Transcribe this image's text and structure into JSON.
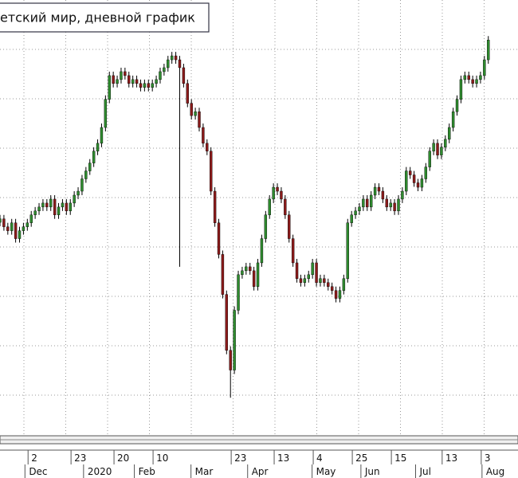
{
  "chart_data": {
    "type": "candlestick",
    "title": "етский мир, дневной график",
    "up_color": "#2e8b2e",
    "down_color": "#8b1a1a",
    "wick_color": "#000000",
    "xlim": [
      0,
      132.6
    ],
    "ylim": [
      1.8,
      90
    ],
    "open": [
      45.0,
      45.7,
      44.1,
      43.3,
      44.9,
      41.7,
      43.3,
      44.1,
      44.9,
      46.5,
      47.3,
      48.1,
      48.9,
      48.1,
      49.7,
      46.5,
      48.1,
      48.9,
      47.3,
      48.9,
      50.5,
      51.3,
      53.8,
      55.4,
      57.0,
      59.4,
      61.0,
      64.2,
      69.9,
      74.7,
      73.1,
      73.9,
      75.5,
      74.7,
      73.1,
      73.9,
      73.1,
      72.3,
      73.1,
      72.3,
      73.1,
      73.9,
      75.5,
      76.3,
      77.9,
      78.7,
      77.9,
      76.3,
      73.1,
      69.1,
      66.6,
      67.4,
      64.2,
      61.0,
      59.4,
      51.3,
      44.9,
      38.5,
      30.4,
      19.1,
      15.1,
      27.2,
      34.4,
      35.2,
      36.0,
      35.2,
      32.0,
      36.8,
      41.7,
      46.5,
      49.7,
      52.1,
      51.3,
      49.7,
      46.5,
      41.7,
      36.8,
      33.6,
      32.8,
      33.6,
      34.4,
      36.8,
      32.8,
      33.6,
      32.8,
      32.0,
      31.2,
      29.6,
      31.2,
      33.6,
      44.9,
      46.5,
      47.3,
      48.1,
      49.7,
      48.1,
      50.5,
      52.1,
      51.3,
      49.7,
      48.1,
      48.9,
      47.3,
      49.7,
      51.3,
      55.4,
      54.6,
      53.0,
      52.1,
      53.8,
      56.2,
      59.4,
      61.0,
      58.6,
      60.2,
      61.8,
      64.2,
      67.4,
      69.9,
      73.9,
      74.7,
      73.9,
      73.1,
      73.9,
      74.7,
      77.9
    ],
    "high": [
      46.5,
      46.5,
      44.9,
      45.7,
      45.7,
      44.1,
      44.9,
      45.7,
      47.3,
      48.1,
      48.9,
      49.7,
      49.7,
      50.5,
      50.5,
      48.9,
      49.7,
      49.7,
      49.7,
      51.3,
      52.1,
      54.6,
      56.2,
      57.8,
      60.2,
      61.8,
      65.0,
      70.7,
      75.5,
      75.5,
      74.7,
      76.3,
      76.3,
      75.5,
      74.7,
      74.7,
      73.9,
      73.9,
      73.9,
      73.9,
      74.7,
      76.3,
      77.1,
      78.7,
      79.5,
      79.5,
      78.7,
      77.1,
      73.9,
      69.9,
      68.2,
      68.2,
      65.0,
      61.8,
      60.2,
      52.1,
      45.7,
      39.3,
      31.2,
      19.9,
      28.0,
      35.2,
      36.0,
      36.8,
      36.8,
      36.0,
      37.6,
      42.5,
      47.3,
      50.5,
      52.9,
      52.9,
      52.1,
      50.5,
      47.3,
      42.5,
      37.6,
      34.4,
      34.4,
      35.2,
      37.6,
      37.6,
      34.4,
      34.4,
      33.6,
      32.8,
      32.0,
      32.0,
      34.4,
      45.7,
      47.3,
      48.1,
      48.9,
      50.5,
      50.5,
      51.3,
      52.9,
      52.9,
      52.1,
      50.5,
      49.7,
      49.7,
      50.5,
      52.1,
      56.2,
      56.2,
      55.4,
      53.8,
      54.6,
      57.0,
      60.2,
      61.8,
      61.8,
      61.0,
      62.6,
      65.0,
      68.2,
      70.7,
      74.7,
      75.5,
      75.5,
      74.7,
      74.7,
      75.5,
      78.7,
      82.7
    ],
    "low": [
      44.2,
      43.3,
      42.5,
      42.5,
      40.9,
      40.9,
      42.5,
      43.3,
      44.1,
      45.7,
      46.5,
      47.3,
      47.3,
      47.3,
      45.7,
      45.7,
      47.3,
      46.5,
      46.5,
      48.1,
      49.7,
      50.5,
      53.0,
      54.6,
      56.2,
      58.6,
      60.2,
      63.4,
      69.1,
      72.3,
      72.3,
      73.1,
      73.9,
      72.3,
      72.3,
      72.3,
      71.5,
      71.5,
      71.5,
      71.5,
      72.3,
      73.1,
      74.7,
      75.5,
      77.1,
      77.1,
      36.0,
      72.3,
      68.3,
      65.8,
      65.8,
      63.4,
      60.2,
      58.6,
      50.5,
      44.1,
      37.7,
      29.6,
      18.3,
      9.5,
      14.3,
      26.4,
      33.6,
      34.4,
      34.4,
      31.2,
      31.2,
      36.0,
      40.9,
      45.7,
      48.9,
      50.5,
      48.9,
      45.7,
      40.9,
      36.0,
      32.8,
      32.0,
      32.0,
      32.8,
      33.6,
      32.0,
      32.0,
      32.0,
      31.2,
      30.4,
      28.8,
      28.8,
      30.4,
      32.8,
      44.1,
      45.7,
      46.5,
      47.3,
      47.3,
      47.3,
      49.7,
      50.5,
      48.9,
      47.3,
      47.3,
      46.5,
      46.5,
      48.9,
      50.5,
      53.8,
      52.2,
      51.3,
      51.3,
      53.0,
      55.4,
      58.6,
      57.8,
      57.8,
      59.4,
      61.0,
      63.4,
      66.6,
      69.1,
      73.1,
      73.1,
      72.3,
      72.3,
      73.1,
      73.9,
      77.1
    ],
    "close": [
      45.7,
      44.1,
      43.3,
      44.9,
      41.7,
      43.3,
      44.1,
      44.9,
      46.5,
      47.3,
      48.1,
      48.9,
      48.1,
      49.7,
      46.5,
      48.1,
      48.9,
      47.3,
      48.9,
      50.5,
      51.3,
      53.8,
      55.4,
      57.0,
      59.4,
      61.0,
      64.2,
      69.9,
      74.7,
      73.1,
      73.9,
      75.5,
      74.7,
      73.1,
      73.9,
      73.1,
      72.3,
      73.1,
      72.3,
      73.1,
      73.9,
      75.5,
      76.3,
      77.9,
      78.7,
      77.9,
      76.3,
      73.1,
      69.1,
      66.6,
      67.4,
      64.2,
      61.0,
      59.4,
      51.3,
      44.9,
      38.5,
      30.4,
      19.1,
      15.1,
      27.2,
      34.4,
      35.2,
      36.0,
      35.2,
      32.0,
      36.8,
      41.7,
      46.5,
      49.7,
      52.1,
      51.3,
      49.7,
      46.5,
      41.7,
      36.8,
      33.6,
      32.8,
      33.6,
      34.4,
      36.8,
      32.8,
      33.6,
      32.8,
      32.0,
      31.2,
      29.6,
      31.2,
      33.6,
      44.9,
      46.5,
      47.3,
      48.1,
      49.7,
      48.1,
      50.5,
      52.1,
      51.3,
      49.7,
      48.1,
      48.9,
      47.3,
      49.7,
      51.3,
      55.4,
      54.6,
      53.0,
      52.1,
      53.8,
      56.2,
      59.4,
      61.0,
      58.6,
      60.2,
      61.8,
      64.2,
      67.4,
      69.9,
      73.9,
      74.7,
      73.9,
      73.1,
      73.9,
      74.7,
      77.9,
      81.9
    ],
    "xticks": [
      {
        "value": 8,
        "label": "2"
      },
      {
        "value": 19,
        "label": "23"
      },
      {
        "value": 30,
        "label": "20"
      },
      {
        "value": 40,
        "label": "10"
      },
      {
        "value": 60,
        "label": "23"
      },
      {
        "value": 71,
        "label": "13"
      },
      {
        "value": 81,
        "label": "4"
      },
      {
        "value": 91,
        "label": "25"
      },
      {
        "value": 101,
        "label": "15"
      },
      {
        "value": 114,
        "label": "13"
      },
      {
        "value": 124,
        "label": "3"
      }
    ],
    "month_ticks": [
      {
        "value": 7,
        "label": "Dec"
      },
      {
        "value": 22,
        "label": "2020"
      },
      {
        "value": 35,
        "label": "Feb"
      },
      {
        "value": 49.5,
        "label": "Mar"
      },
      {
        "value": 64,
        "label": "Apr"
      },
      {
        "value": 80.5,
        "label": "May"
      },
      {
        "value": 93,
        "label": "Jun"
      },
      {
        "value": 107,
        "label": "Jul"
      },
      {
        "value": 124,
        "label": "Aug"
      }
    ]
  }
}
